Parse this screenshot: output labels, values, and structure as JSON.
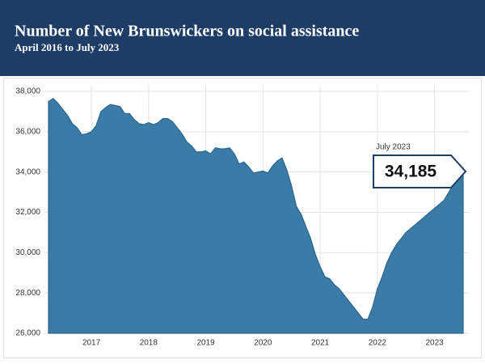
{
  "chart_data": {
    "type": "area",
    "title": "Number of New Brunswickers on social assistance",
    "subtitle": "April 2016 to July 2023",
    "color": "#3a7ca5",
    "grid": true,
    "x": [
      "2016-04",
      "2016-05",
      "2016-06",
      "2016-07",
      "2016-08",
      "2016-09",
      "2016-10",
      "2016-11",
      "2016-12",
      "2017-01",
      "2017-02",
      "2017-03",
      "2017-04",
      "2017-05",
      "2017-06",
      "2017-07",
      "2017-08",
      "2017-09",
      "2017-10",
      "2017-11",
      "2017-12",
      "2018-01",
      "2018-02",
      "2018-03",
      "2018-04",
      "2018-05",
      "2018-06",
      "2018-07",
      "2018-08",
      "2018-09",
      "2018-10",
      "2018-11",
      "2018-12",
      "2019-01",
      "2019-02",
      "2019-03",
      "2019-04",
      "2019-05",
      "2019-06",
      "2019-07",
      "2019-08",
      "2019-09",
      "2019-10",
      "2019-11",
      "2019-12",
      "2020-01",
      "2020-02",
      "2020-03",
      "2020-04",
      "2020-05",
      "2020-06",
      "2020-07",
      "2020-08",
      "2020-09",
      "2020-10",
      "2020-11",
      "2020-12",
      "2021-01",
      "2021-02",
      "2021-03",
      "2021-04",
      "2021-05",
      "2021-06",
      "2021-07",
      "2021-08",
      "2021-09",
      "2021-10",
      "2021-11",
      "2021-12",
      "2022-01",
      "2022-02",
      "2022-03",
      "2022-04",
      "2022-05",
      "2022-06",
      "2022-07",
      "2022-08",
      "2022-09",
      "2022-10",
      "2022-11",
      "2022-12",
      "2023-01",
      "2023-02",
      "2023-03",
      "2023-04",
      "2023-05",
      "2023-06",
      "2023-07"
    ],
    "values": [
      37500,
      37650,
      37400,
      37100,
      36800,
      36400,
      36200,
      35850,
      35900,
      36000,
      36300,
      37000,
      37200,
      37350,
      37300,
      37250,
      36900,
      36900,
      36600,
      36400,
      36350,
      36450,
      36350,
      36450,
      36650,
      36650,
      36500,
      36200,
      35900,
      35500,
      35300,
      35000,
      35000,
      35050,
      34900,
      35200,
      35150,
      35150,
      35200,
      34900,
      34400,
      34500,
      34250,
      33950,
      34000,
      34050,
      33950,
      34300,
      34550,
      34700,
      34100,
      33300,
      32300,
      31900,
      31300,
      30700,
      29900,
      29300,
      28800,
      28700,
      28400,
      28200,
      27900,
      27600,
      27300,
      27000,
      26700,
      26700,
      27300,
      28200,
      28800,
      29500,
      30000,
      30400,
      30700,
      31000,
      31200,
      31400,
      31600,
      31800,
      32000,
      32200,
      32400,
      32600,
      33000,
      33400,
      33800,
      34185
    ],
    "xlim": [
      "2016-04",
      "2023-07"
    ],
    "xticks": [
      {
        "value": "2017-01",
        "label": "2017"
      },
      {
        "value": "2018-01",
        "label": "2018"
      },
      {
        "value": "2019-01",
        "label": "2019"
      },
      {
        "value": "2020-01",
        "label": "2020"
      },
      {
        "value": "2021-01",
        "label": "2021"
      },
      {
        "value": "2022-01",
        "label": "2022"
      },
      {
        "value": "2023-01",
        "label": "2023"
      }
    ],
    "ylim": [
      26000,
      38000
    ],
    "yticks": [
      {
        "value": 26000,
        "label": "26,000"
      },
      {
        "value": 28000,
        "label": "28,000"
      },
      {
        "value": 30000,
        "label": "30,000"
      },
      {
        "value": 32000,
        "label": "32,000"
      },
      {
        "value": 34000,
        "label": "34,000"
      },
      {
        "value": 36000,
        "label": "36,000"
      },
      {
        "value": 38000,
        "label": "38,000"
      }
    ],
    "annotation": {
      "date_label": "July 2023",
      "value_label": "34,185"
    }
  }
}
